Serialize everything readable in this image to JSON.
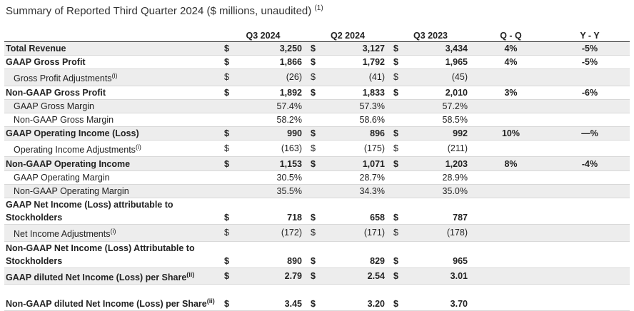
{
  "title": "Summary of Reported Third Quarter 2024 ($ millions, unaudited)",
  "title_note": "(1)",
  "columns": [
    "Q3 2024",
    "Q2 2024",
    "Q3 2023",
    "Q - Q",
    "Y - Y"
  ],
  "rows": [
    {
      "label": "Total Revenue",
      "note": "",
      "d": [
        "$",
        "$",
        "$"
      ],
      "v": [
        "3,250",
        "3,127",
        "3,434"
      ],
      "qq": "4%",
      "yy": "-5%"
    },
    {
      "label": "GAAP Gross Profit",
      "note": "",
      "d": [
        "$",
        "$",
        "$"
      ],
      "v": [
        "1,866",
        "1,792",
        "1,965"
      ],
      "qq": "4%",
      "yy": "-5%"
    },
    {
      "label": "Gross Profit Adjustments",
      "note": "(i)",
      "d": [
        "$",
        "$",
        "$"
      ],
      "v": [
        "(26)",
        "(41)",
        "(45)"
      ],
      "qq": "",
      "yy": ""
    },
    {
      "label": "Non-GAAP Gross Profit",
      "note": "",
      "d": [
        "$",
        "$",
        "$"
      ],
      "v": [
        "1,892",
        "1,833",
        "2,010"
      ],
      "qq": "3%",
      "yy": "-6%"
    },
    {
      "label": "GAAP Gross Margin",
      "note": "",
      "d": [
        "",
        "",
        ""
      ],
      "v": [
        "57.4%",
        "57.3%",
        "57.2%"
      ],
      "qq": "",
      "yy": ""
    },
    {
      "label": "Non-GAAP Gross Margin",
      "note": "",
      "d": [
        "",
        "",
        ""
      ],
      "v": [
        "58.2%",
        "58.6%",
        "58.5%"
      ],
      "qq": "",
      "yy": ""
    },
    {
      "label": "GAAP Operating Income (Loss)",
      "note": "",
      "d": [
        "$",
        "$",
        "$"
      ],
      "v": [
        "990",
        "896",
        "992"
      ],
      "qq": "10%",
      "yy": "—%"
    },
    {
      "label": "Operating Income Adjustments",
      "note": "(i)",
      "d": [
        "$",
        "$",
        "$"
      ],
      "v": [
        "(163)",
        "(175)",
        "(211)"
      ],
      "qq": "",
      "yy": ""
    },
    {
      "label": "Non-GAAP Operating Income",
      "note": "",
      "d": [
        "$",
        "$",
        "$"
      ],
      "v": [
        "1,153",
        "1,071",
        "1,203"
      ],
      "qq": "8%",
      "yy": "-4%"
    },
    {
      "label": "GAAP Operating Margin",
      "note": "",
      "d": [
        "",
        "",
        ""
      ],
      "v": [
        "30.5%",
        "28.7%",
        "28.9%"
      ],
      "qq": "",
      "yy": ""
    },
    {
      "label": "Non-GAAP Operating Margin",
      "note": "",
      "d": [
        "",
        "",
        ""
      ],
      "v": [
        "35.5%",
        "34.3%",
        "35.0%"
      ],
      "qq": "",
      "yy": ""
    },
    {
      "label": "GAAP Net Income (Loss) attributable to Stockholders",
      "note": "",
      "d": [
        "$",
        "$",
        "$"
      ],
      "v": [
        "718",
        "658",
        "787"
      ],
      "qq": "",
      "yy": ""
    },
    {
      "label": "Net Income Adjustments",
      "note": "(i)",
      "d": [
        "$",
        "$",
        "$"
      ],
      "v": [
        "(172)",
        "(171)",
        "(178)"
      ],
      "qq": "",
      "yy": ""
    },
    {
      "label": "Non-GAAP Net Income (Loss) Attributable to Stockholders",
      "note": "",
      "d": [
        "$",
        "$",
        "$"
      ],
      "v": [
        "890",
        "829",
        "965"
      ],
      "qq": "",
      "yy": ""
    },
    {
      "label": "GAAP diluted Net Income (Loss) per Share",
      "note": "(ii)",
      "d": [
        "$",
        "$",
        "$"
      ],
      "v": [
        "2.79",
        "2.54",
        "3.01"
      ],
      "qq": "",
      "yy": ""
    },
    {
      "label": "Non-GAAP diluted Net Income (Loss) per Share",
      "note": "(ii)",
      "d": [
        "$",
        "$",
        "$"
      ],
      "v": [
        "3.45",
        "3.20",
        "3.70"
      ],
      "qq": "",
      "yy": ""
    }
  ]
}
